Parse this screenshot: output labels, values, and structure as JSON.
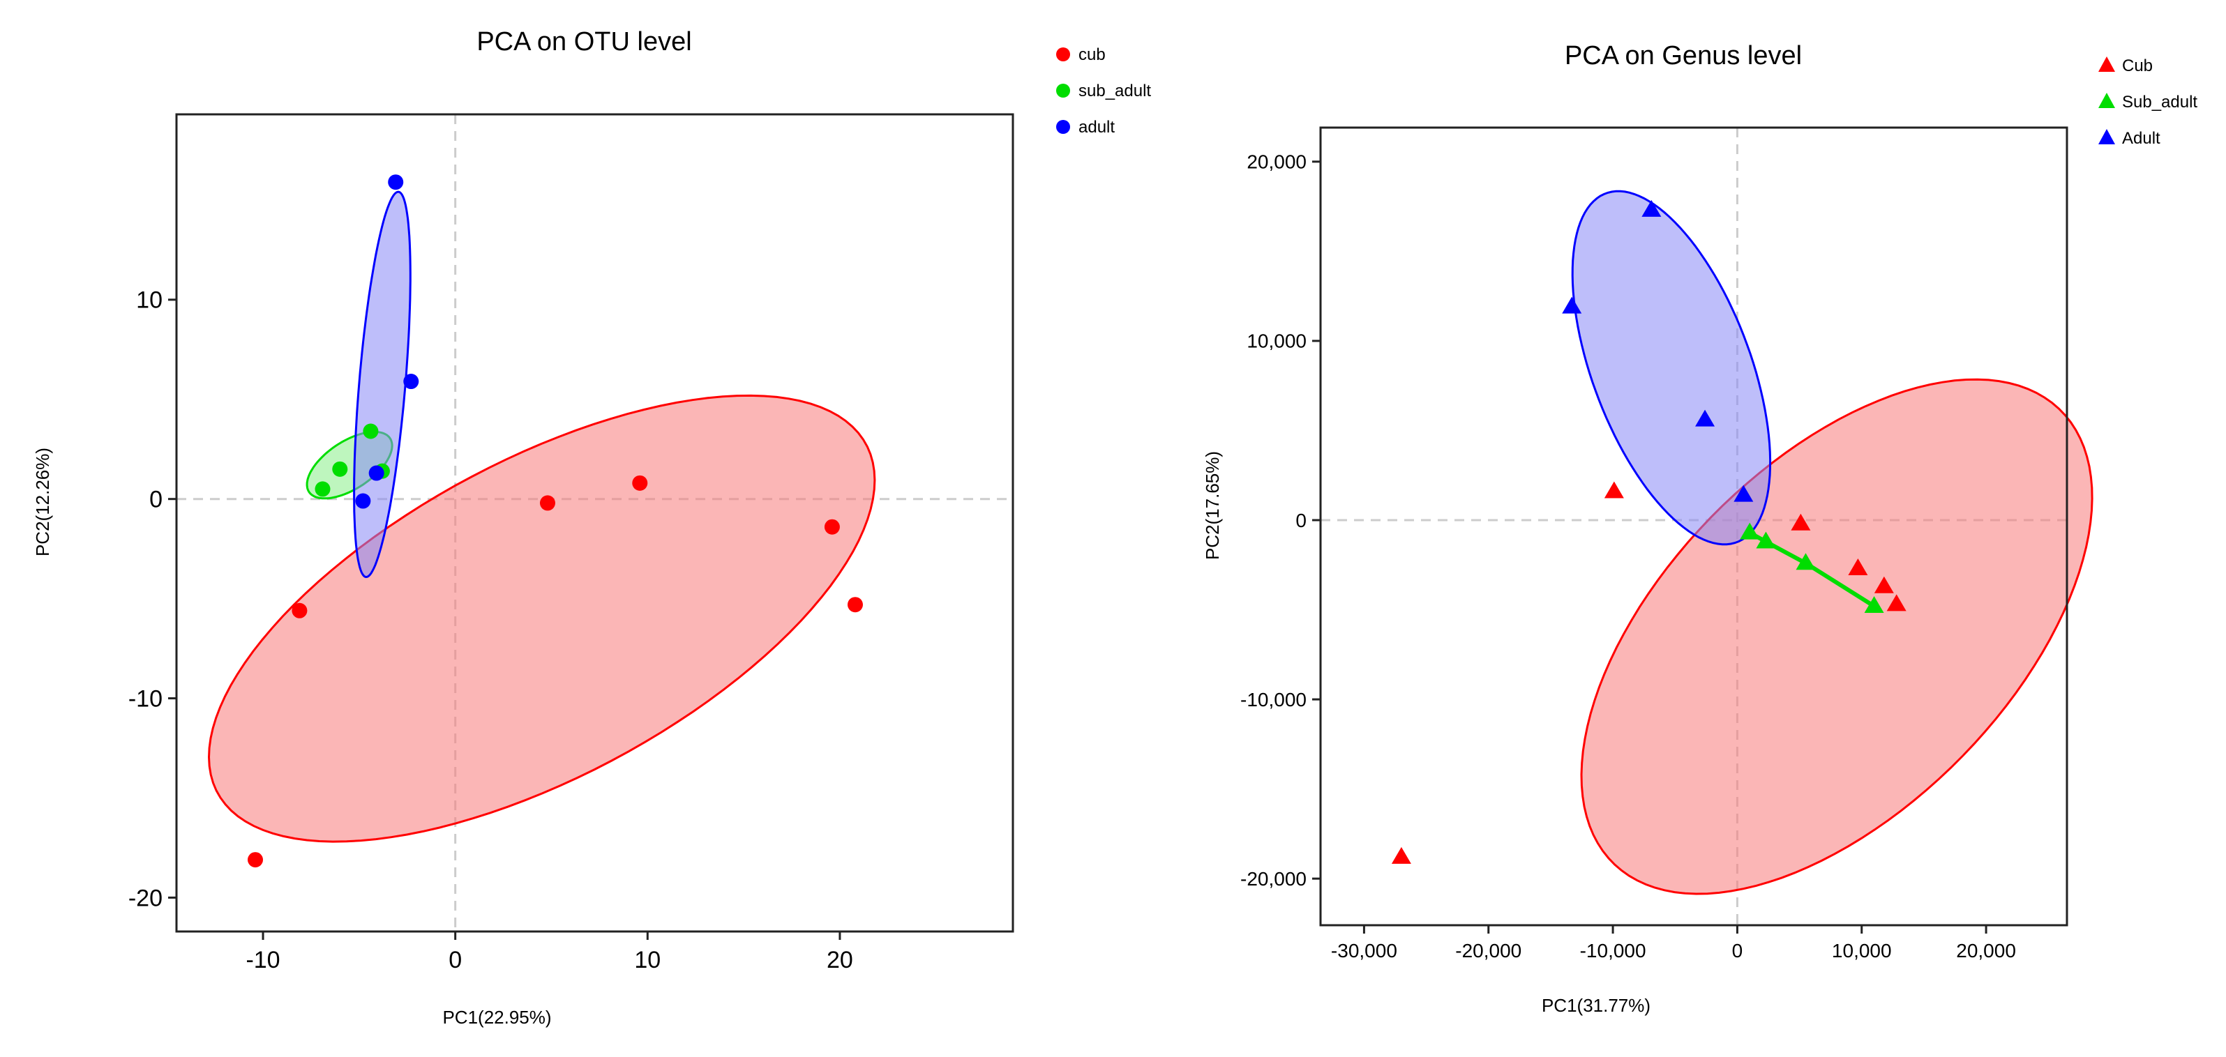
{
  "colors": {
    "red": "#ff0000",
    "green": "#00dd00",
    "blue": "#0000ff",
    "red_fill": "#f77a7a",
    "green_fill": "#88ee88",
    "blue_fill": "#8888f5",
    "grid": "#cccccc"
  },
  "chart_data": [
    {
      "type": "scatter",
      "title": "PCA on OTU level",
      "xlabel": "PC1(22.95%)",
      "ylabel": "PC2(12.26%)",
      "xlim": [
        -14.5,
        29
      ],
      "ylim": [
        -21.7,
        19.3
      ],
      "xticks": [
        -10,
        0,
        10,
        20
      ],
      "yticks": [
        -20,
        -10,
        0,
        10
      ],
      "tick_labels_x": [
        "-10",
        "0",
        "10",
        "20"
      ],
      "tick_labels_y": [
        "-20",
        "-10",
        "0",
        "10"
      ],
      "marker": "circle",
      "legend_position": "top-right outside",
      "series": [
        {
          "name": "cub",
          "color": "red",
          "points": [
            [
              -8.1,
              -5.6
            ],
            [
              -10.4,
              -18.1
            ],
            [
              4.8,
              -0.2
            ],
            [
              9.6,
              0.8
            ],
            [
              19.6,
              -1.4
            ],
            [
              20.8,
              -5.3
            ]
          ],
          "ellipse": {
            "center": [
              4.5,
              -6.0
            ],
            "semi_major": 19.0,
            "semi_minor": 8.0,
            "angle_deg": 27
          }
        },
        {
          "name": "sub_adult",
          "color": "green",
          "points": [
            [
              -6.9,
              0.5
            ],
            [
              -6.0,
              1.5
            ],
            [
              -4.4,
              3.4
            ],
            [
              -3.8,
              1.4
            ]
          ],
          "ellipse": {
            "center": [
              -5.5,
              1.7
            ],
            "semi_major": 2.5,
            "semi_minor": 1.2,
            "angle_deg": 32
          }
        },
        {
          "name": "adult",
          "color": "blue",
          "points": [
            [
              -3.1,
              15.9
            ],
            [
              -2.3,
              5.9
            ],
            [
              -4.1,
              1.3
            ],
            [
              -4.8,
              -0.1
            ]
          ],
          "ellipse": {
            "center": [
              -3.8,
              5.75
            ],
            "semi_major": 9.7,
            "semi_minor": 1.2,
            "angle_deg": 85
          }
        }
      ]
    },
    {
      "type": "scatter",
      "title": "PCA on Genus level",
      "xlabel": "PC1(31.77%)",
      "ylabel": "PC2(17.65%)",
      "xlim": [
        -33500,
        26500
      ],
      "ylim": [
        -22600,
        21900
      ],
      "xticks": [
        -30000,
        -20000,
        -10000,
        0,
        10000,
        20000
      ],
      "yticks": [
        -20000,
        -10000,
        0,
        10000,
        20000
      ],
      "tick_labels_x": [
        "-30,000",
        "-20,000",
        "-10,000",
        "0",
        "10,000",
        "20,000"
      ],
      "tick_labels_y": [
        "-20,000",
        "-10,000",
        "0",
        "10,000",
        "20,000"
      ],
      "marker": "triangle",
      "legend_position": "top-right outside",
      "series": [
        {
          "name": "Cub",
          "color": "red",
          "points": [
            [
              -27000,
              -18800
            ],
            [
              -9900,
              1600
            ],
            [
              5100,
              -200
            ],
            [
              9700,
              -2700
            ],
            [
              11800,
              -3700
            ],
            [
              12800,
              -4700
            ]
          ],
          "ellipse": {
            "center": [
              8000,
              -6500
            ],
            "semi_major": 22500,
            "semi_minor": 11000,
            "angle_deg": 28
          }
        },
        {
          "name": "Sub_adult",
          "color": "green",
          "points": [
            [
              1000,
              -700
            ],
            [
              2300,
              -1200
            ],
            [
              5500,
              -2400
            ],
            [
              11000,
              -4800
            ]
          ],
          "line": true
        },
        {
          "name": "Adult",
          "color": "blue",
          "points": [
            [
              -6900,
              17300
            ],
            [
              -13300,
              11900
            ],
            [
              -2600,
              5600
            ],
            [
              500,
              1400
            ]
          ],
          "ellipse": {
            "center": [
              -5300,
              8500
            ],
            "semi_major": 11200,
            "semi_minor": 5900,
            "angle_deg": -56
          }
        }
      ]
    }
  ]
}
